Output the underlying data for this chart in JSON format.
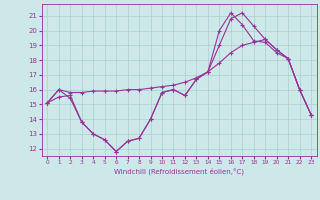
{
  "xlabel": "Windchill (Refroidissement éolien,°C)",
  "background_color": "#cce8e8",
  "grid_color": "#aacfcf",
  "line_color": "#993399",
  "xlim": [
    -0.5,
    23.5
  ],
  "ylim": [
    11.5,
    21.8
  ],
  "yticks": [
    12,
    13,
    14,
    15,
    16,
    17,
    18,
    19,
    20,
    21
  ],
  "xticks": [
    0,
    1,
    2,
    3,
    4,
    5,
    6,
    7,
    8,
    9,
    10,
    11,
    12,
    13,
    14,
    15,
    16,
    17,
    18,
    19,
    20,
    21,
    22,
    23
  ],
  "line1_x": [
    0,
    1,
    2,
    3,
    4,
    5,
    6,
    7,
    8,
    9,
    10,
    11,
    12,
    13,
    14,
    15,
    16,
    17,
    18,
    19,
    20,
    21,
    22,
    23
  ],
  "line1_y": [
    15.1,
    16.0,
    15.4,
    13.8,
    13.0,
    12.6,
    11.8,
    12.5,
    12.7,
    14.0,
    15.8,
    16.0,
    15.6,
    16.7,
    17.2,
    20.0,
    21.2,
    20.4,
    19.3,
    19.2,
    18.5,
    18.1,
    16.0,
    14.3
  ],
  "line2_x": [
    0,
    1,
    2,
    3,
    4,
    5,
    6,
    7,
    8,
    9,
    10,
    11,
    12,
    13,
    14,
    15,
    16,
    17,
    18,
    19,
    20,
    21,
    22,
    23
  ],
  "line2_y": [
    15.1,
    16.0,
    15.8,
    15.8,
    15.9,
    15.9,
    15.9,
    16.0,
    16.0,
    16.1,
    16.2,
    16.3,
    16.5,
    16.8,
    17.2,
    17.8,
    18.5,
    19.0,
    19.2,
    19.4,
    18.7,
    18.1,
    16.0,
    14.3
  ],
  "line3_x": [
    0,
    1,
    2,
    3,
    4,
    5,
    6,
    7,
    8,
    9,
    10,
    11,
    12,
    13,
    14,
    15,
    16,
    17,
    18,
    19,
    20,
    21,
    22,
    23
  ],
  "line3_y": [
    15.1,
    15.5,
    15.6,
    13.8,
    13.0,
    12.6,
    11.8,
    12.5,
    12.7,
    14.0,
    15.8,
    16.0,
    15.6,
    16.7,
    17.2,
    19.0,
    20.8,
    21.2,
    20.3,
    19.4,
    18.7,
    18.1,
    16.0,
    14.3
  ]
}
